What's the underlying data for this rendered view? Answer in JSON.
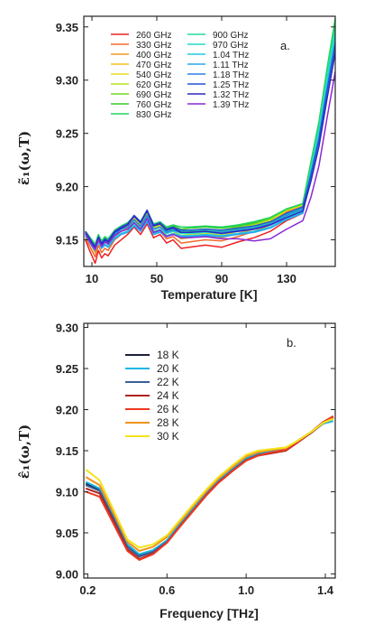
{
  "chart_data": [
    {
      "type": "line",
      "panel_label": "a.",
      "xlabel": "Temperature [K]",
      "ylabel": "ε̃₁(ω,T)",
      "xlim": [
        5,
        160
      ],
      "ylim": [
        9.125,
        9.36
      ],
      "xticks": [
        10,
        50,
        90,
        130
      ],
      "yticks": [
        9.15,
        9.2,
        9.25,
        9.3,
        9.35
      ],
      "ytick_labels": [
        "9.15",
        "9.20",
        "9.25",
        "9.30",
        "9.35"
      ],
      "legend_position": "top-left",
      "x": [
        6,
        8,
        10,
        12,
        14,
        16,
        18,
        20,
        24,
        28,
        32,
        36,
        40,
        44,
        48,
        52,
        56,
        60,
        65,
        70,
        80,
        90,
        100,
        110,
        120,
        130,
        140,
        145,
        150,
        155,
        160
      ],
      "series": [
        {
          "name": "260 GHz",
          "color": "#ee2222",
          "values": [
            9.15,
            9.142,
            9.135,
            9.128,
            9.14,
            9.133,
            9.137,
            9.135,
            9.145,
            9.15,
            9.155,
            9.162,
            9.155,
            9.165,
            9.152,
            9.155,
            9.147,
            9.15,
            9.142,
            9.143,
            9.145,
            9.143,
            9.148,
            9.152,
            9.158,
            9.168,
            9.175,
            9.21,
            9.25,
            9.3,
            9.345
          ]
        },
        {
          "name": "330 GHz",
          "color": "#f06a2a",
          "values": [
            9.152,
            9.146,
            9.14,
            9.134,
            9.145,
            9.138,
            9.142,
            9.14,
            9.15,
            9.155,
            9.158,
            9.166,
            9.16,
            9.17,
            9.156,
            9.158,
            9.151,
            9.153,
            9.147,
            9.148,
            9.15,
            9.149,
            9.153,
            9.158,
            9.164,
            9.176,
            9.18,
            9.218,
            9.255,
            9.305,
            9.35
          ]
        },
        {
          "name": "400 GHz",
          "color": "#f39a1e",
          "values": [
            9.154,
            9.149,
            9.144,
            9.138,
            9.149,
            9.142,
            9.146,
            9.144,
            9.153,
            9.158,
            9.161,
            9.168,
            9.162,
            9.172,
            9.158,
            9.16,
            9.154,
            9.156,
            9.151,
            9.152,
            9.153,
            9.152,
            9.156,
            9.16,
            9.166,
            9.177,
            9.181,
            9.219,
            9.256,
            9.306,
            9.352
          ]
        },
        {
          "name": "470 GHz",
          "color": "#f2c21a",
          "values": [
            9.155,
            9.15,
            9.145,
            9.14,
            9.15,
            9.144,
            9.148,
            9.146,
            9.155,
            9.16,
            9.163,
            9.17,
            9.163,
            9.173,
            9.16,
            9.162,
            9.156,
            9.158,
            9.153,
            9.154,
            9.155,
            9.154,
            9.158,
            9.162,
            9.167,
            9.178,
            9.182,
            9.22,
            9.257,
            9.307,
            9.353
          ]
        },
        {
          "name": "540 GHz",
          "color": "#e6e11c",
          "values": [
            9.156,
            9.151,
            9.146,
            9.141,
            9.151,
            9.145,
            9.149,
            9.147,
            9.156,
            9.161,
            9.164,
            9.171,
            9.164,
            9.174,
            9.161,
            9.163,
            9.157,
            9.159,
            9.154,
            9.155,
            9.156,
            9.155,
            9.159,
            9.163,
            9.168,
            9.178,
            9.183,
            9.221,
            9.258,
            9.308,
            9.354
          ]
        },
        {
          "name": "620 GHz",
          "color": "#b6e21c",
          "values": [
            9.157,
            9.152,
            9.147,
            9.143,
            9.152,
            9.146,
            9.15,
            9.148,
            9.157,
            9.162,
            9.165,
            9.172,
            9.165,
            9.175,
            9.162,
            9.164,
            9.158,
            9.16,
            9.156,
            9.157,
            9.158,
            9.157,
            9.16,
            9.164,
            9.169,
            9.178,
            9.183,
            9.222,
            9.259,
            9.309,
            9.355
          ]
        },
        {
          "name": "690 GHz",
          "color": "#74d81e",
          "values": [
            9.157,
            9.153,
            9.148,
            9.144,
            9.153,
            9.147,
            9.151,
            9.149,
            9.158,
            9.162,
            9.165,
            9.172,
            9.166,
            9.176,
            9.163,
            9.165,
            9.159,
            9.161,
            9.158,
            9.159,
            9.16,
            9.159,
            9.162,
            9.165,
            9.17,
            9.179,
            9.184,
            9.222,
            9.26,
            9.31,
            9.356
          ]
        },
        {
          "name": "760 GHz",
          "color": "#38cc2c",
          "values": [
            9.158,
            9.154,
            9.149,
            9.145,
            9.154,
            9.148,
            9.152,
            9.15,
            9.159,
            9.163,
            9.166,
            9.172,
            9.167,
            9.177,
            9.164,
            9.166,
            9.161,
            9.163,
            9.16,
            9.161,
            9.162,
            9.161,
            9.163,
            9.166,
            9.171,
            9.179,
            9.184,
            9.223,
            9.261,
            9.311,
            9.357
          ]
        },
        {
          "name": "830 GHz",
          "color": "#20d460",
          "values": [
            9.158,
            9.154,
            9.15,
            9.146,
            9.155,
            9.149,
            9.153,
            9.151,
            9.159,
            9.163,
            9.166,
            9.172,
            9.167,
            9.177,
            9.165,
            9.167,
            9.162,
            9.164,
            9.162,
            9.162,
            9.163,
            9.162,
            9.164,
            9.167,
            9.171,
            9.179,
            9.184,
            9.223,
            9.261,
            9.311,
            9.358
          ]
        },
        {
          "name": "900 GHz",
          "color": "#24dc9a",
          "values": [
            9.157,
            9.153,
            9.148,
            9.144,
            9.153,
            9.147,
            9.15,
            9.148,
            9.156,
            9.16,
            9.162,
            9.168,
            9.163,
            9.172,
            9.16,
            9.162,
            9.158,
            9.16,
            9.158,
            9.158,
            9.159,
            9.158,
            9.16,
            9.162,
            9.166,
            9.174,
            9.18,
            9.218,
            9.255,
            9.305,
            9.35
          ]
        },
        {
          "name": "970 GHz",
          "color": "#22dcc8",
          "values": [
            9.156,
            9.152,
            9.147,
            9.143,
            9.151,
            9.145,
            9.148,
            9.146,
            9.154,
            9.158,
            9.16,
            9.166,
            9.161,
            9.17,
            9.158,
            9.16,
            9.156,
            9.158,
            9.156,
            9.156,
            9.157,
            9.156,
            9.158,
            9.16,
            9.164,
            9.172,
            9.178,
            9.215,
            9.252,
            9.3,
            9.345
          ]
        },
        {
          "name": "1.04 THz",
          "color": "#22c8e6",
          "values": [
            9.155,
            9.15,
            9.145,
            9.141,
            9.149,
            9.143,
            9.146,
            9.144,
            9.152,
            9.156,
            9.158,
            9.164,
            9.159,
            9.168,
            9.156,
            9.158,
            9.154,
            9.156,
            9.154,
            9.154,
            9.155,
            9.154,
            9.156,
            9.158,
            9.162,
            9.17,
            9.176,
            9.212,
            9.248,
            9.296,
            9.34
          ]
        },
        {
          "name": "1.11 THz",
          "color": "#2aa6ec",
          "values": [
            9.154,
            9.149,
            9.144,
            9.14,
            9.148,
            9.142,
            9.145,
            9.143,
            9.151,
            9.155,
            9.157,
            9.163,
            9.158,
            9.167,
            9.155,
            9.157,
            9.153,
            9.155,
            9.153,
            9.153,
            9.154,
            9.153,
            9.155,
            9.157,
            9.161,
            9.169,
            9.175,
            9.21,
            9.245,
            9.292,
            9.336
          ]
        },
        {
          "name": "1.18 THz",
          "color": "#2c80e8",
          "values": [
            9.156,
            9.151,
            9.146,
            9.142,
            9.151,
            9.145,
            9.149,
            9.147,
            9.155,
            9.16,
            9.162,
            9.169,
            9.163,
            9.173,
            9.16,
            9.162,
            9.157,
            9.159,
            9.157,
            9.157,
            9.158,
            9.157,
            9.159,
            9.161,
            9.165,
            9.173,
            9.179,
            9.212,
            9.246,
            9.292,
            9.335
          ]
        },
        {
          "name": "1.25 THz",
          "color": "#2452d6",
          "values": [
            9.158,
            9.153,
            9.148,
            9.144,
            9.153,
            9.147,
            9.151,
            9.149,
            9.158,
            9.162,
            9.165,
            9.173,
            9.167,
            9.178,
            9.164,
            9.166,
            9.16,
            9.162,
            9.159,
            9.159,
            9.16,
            9.159,
            9.161,
            9.163,
            9.167,
            9.175,
            9.181,
            9.211,
            9.244,
            9.29,
            9.333
          ]
        },
        {
          "name": "1.32 THz",
          "color": "#2c28c0",
          "values": [
            9.157,
            9.152,
            9.147,
            9.143,
            9.152,
            9.146,
            9.15,
            9.148,
            9.157,
            9.161,
            9.164,
            9.172,
            9.166,
            9.177,
            9.163,
            9.165,
            9.159,
            9.161,
            9.157,
            9.157,
            9.158,
            9.156,
            9.158,
            9.16,
            9.164,
            9.171,
            9.177,
            9.205,
            9.238,
            9.283,
            9.326
          ]
        },
        {
          "name": "1.39 THz",
          "color": "#8a28d6",
          "values": [
            9.156,
            9.15,
            9.145,
            9.141,
            9.15,
            9.144,
            9.148,
            9.146,
            9.154,
            9.158,
            9.16,
            9.166,
            9.16,
            9.17,
            9.157,
            9.159,
            9.153,
            9.155,
            9.152,
            9.152,
            9.153,
            9.151,
            9.151,
            9.149,
            9.151,
            9.16,
            9.168,
            9.19,
            9.22,
            9.265,
            9.308
          ]
        }
      ]
    },
    {
      "type": "line",
      "panel_label": "b.",
      "xlabel": "Frequency [THz]",
      "ylabel": "ε̂₁(ω,T)",
      "xlim": [
        0.18,
        1.45
      ],
      "ylim": [
        8.995,
        9.305
      ],
      "xticks": [
        0.2,
        0.6,
        1.0,
        1.4
      ],
      "xtick_labels": [
        "0.2",
        "0.6",
        "1.0",
        "1.4"
      ],
      "yticks": [
        9.0,
        9.05,
        9.1,
        9.15,
        9.2,
        9.25,
        9.3
      ],
      "ytick_labels": [
        "9.00",
        "9.05",
        "9.10",
        "9.15",
        "9.20",
        "9.25",
        "9.30"
      ],
      "legend_position": "top-left",
      "x": [
        0.19,
        0.26,
        0.33,
        0.4,
        0.46,
        0.53,
        0.6,
        0.66,
        0.73,
        0.8,
        0.86,
        0.93,
        1.0,
        1.06,
        1.13,
        1.2,
        1.26,
        1.33,
        1.39,
        1.44
      ],
      "series": [
        {
          "name": "18 K",
          "color": "#1c1f3c",
          "values": [
            9.11,
            9.103,
            9.07,
            9.035,
            9.023,
            9.028,
            9.04,
            9.058,
            9.078,
            9.098,
            9.113,
            9.127,
            9.14,
            9.146,
            9.149,
            9.152,
            9.162,
            9.173,
            9.185,
            9.19
          ]
        },
        {
          "name": "20 K",
          "color": "#1cb6e6",
          "values": [
            9.112,
            9.104,
            9.071,
            9.036,
            9.024,
            9.029,
            9.041,
            9.059,
            9.079,
            9.099,
            9.114,
            9.128,
            9.141,
            9.147,
            9.15,
            9.152,
            9.161,
            9.172,
            9.183,
            9.186
          ]
        },
        {
          "name": "22 K",
          "color": "#3a5e9a",
          "values": [
            9.108,
            9.101,
            9.068,
            9.033,
            9.021,
            9.027,
            9.039,
            9.057,
            9.077,
            9.097,
            9.112,
            9.126,
            9.139,
            9.145,
            9.148,
            9.151,
            9.161,
            9.172,
            9.184,
            9.189
          ]
        },
        {
          "name": "24 K",
          "color": "#b02222",
          "values": [
            9.104,
            9.098,
            9.064,
            9.03,
            9.018,
            9.025,
            9.038,
            9.056,
            9.076,
            9.096,
            9.111,
            9.125,
            9.138,
            9.144,
            9.147,
            9.15,
            9.16,
            9.172,
            9.184,
            9.191
          ]
        },
        {
          "name": "26 K",
          "color": "#ee3a20",
          "values": [
            9.1,
            9.094,
            9.061,
            9.028,
            9.017,
            9.024,
            9.038,
            9.056,
            9.076,
            9.096,
            9.111,
            9.125,
            9.138,
            9.144,
            9.148,
            9.151,
            9.161,
            9.173,
            9.185,
            9.192
          ]
        },
        {
          "name": "28 K",
          "color": "#f0921c",
          "values": [
            9.118,
            9.108,
            9.074,
            9.039,
            9.028,
            9.033,
            9.045,
            9.062,
            9.082,
            9.101,
            9.116,
            9.13,
            9.143,
            9.148,
            9.151,
            9.153,
            9.162,
            9.173,
            9.184,
            9.189
          ]
        },
        {
          "name": "30 K",
          "color": "#f2e41c",
          "values": [
            9.127,
            9.114,
            9.078,
            9.042,
            9.032,
            9.036,
            9.047,
            9.064,
            9.084,
            9.103,
            9.118,
            9.132,
            9.145,
            9.15,
            9.152,
            9.154,
            9.162,
            9.173,
            9.184,
            9.189
          ]
        }
      ]
    }
  ]
}
